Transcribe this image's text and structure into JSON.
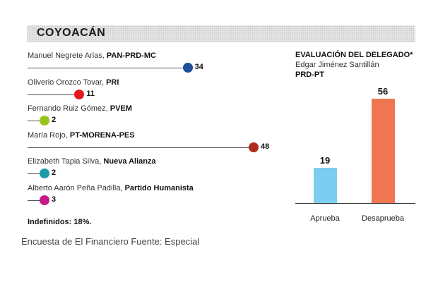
{
  "chart_data": [
    {
      "type": "dot-bar",
      "title": "COYOACÁN",
      "candidates": [
        {
          "name": "Manuel Negrete Arias, ",
          "party": "PAN-PRD-MC",
          "value": 34,
          "color": "#1f4e9b"
        },
        {
          "name": "Oliverio Orozco Tovar,  ",
          "party": "PRI",
          "value": 11,
          "color": "#e4191f"
        },
        {
          "name": "Fernando Ruiz Gómez, ",
          "party": "PVEM",
          "value": 2,
          "color": "#99c31c"
        },
        {
          "name": "María Rojo, ",
          "party": "PT-MORENA-PES",
          "value": 48,
          "color": "#b02c1f"
        },
        {
          "name": "Elizabeth Tapia Silva, ",
          "party": "Nueva Alianza",
          "value": 2,
          "color": "#1f9aa8"
        },
        {
          "name": "Alberto Aarón Peña Padilla, ",
          "party": "Partido Humanista",
          "value": 3,
          "color": "#c8188a"
        }
      ],
      "note": "Indefinidos: 18%."
    },
    {
      "type": "bar",
      "title": "EVALUACIÓN DEL DELEGADO*",
      "subtitle": "Edgar Jiménez Santillán",
      "party": "PRD-PT",
      "categories": [
        "Aprueba",
        "Desaprueba"
      ],
      "values": [
        19,
        56
      ],
      "colors": [
        "#7dcdf2",
        "#ef7650"
      ],
      "ylim": [
        0,
        56
      ]
    }
  ],
  "caption": "Encuesta de El Financiero Fuente: Especial"
}
